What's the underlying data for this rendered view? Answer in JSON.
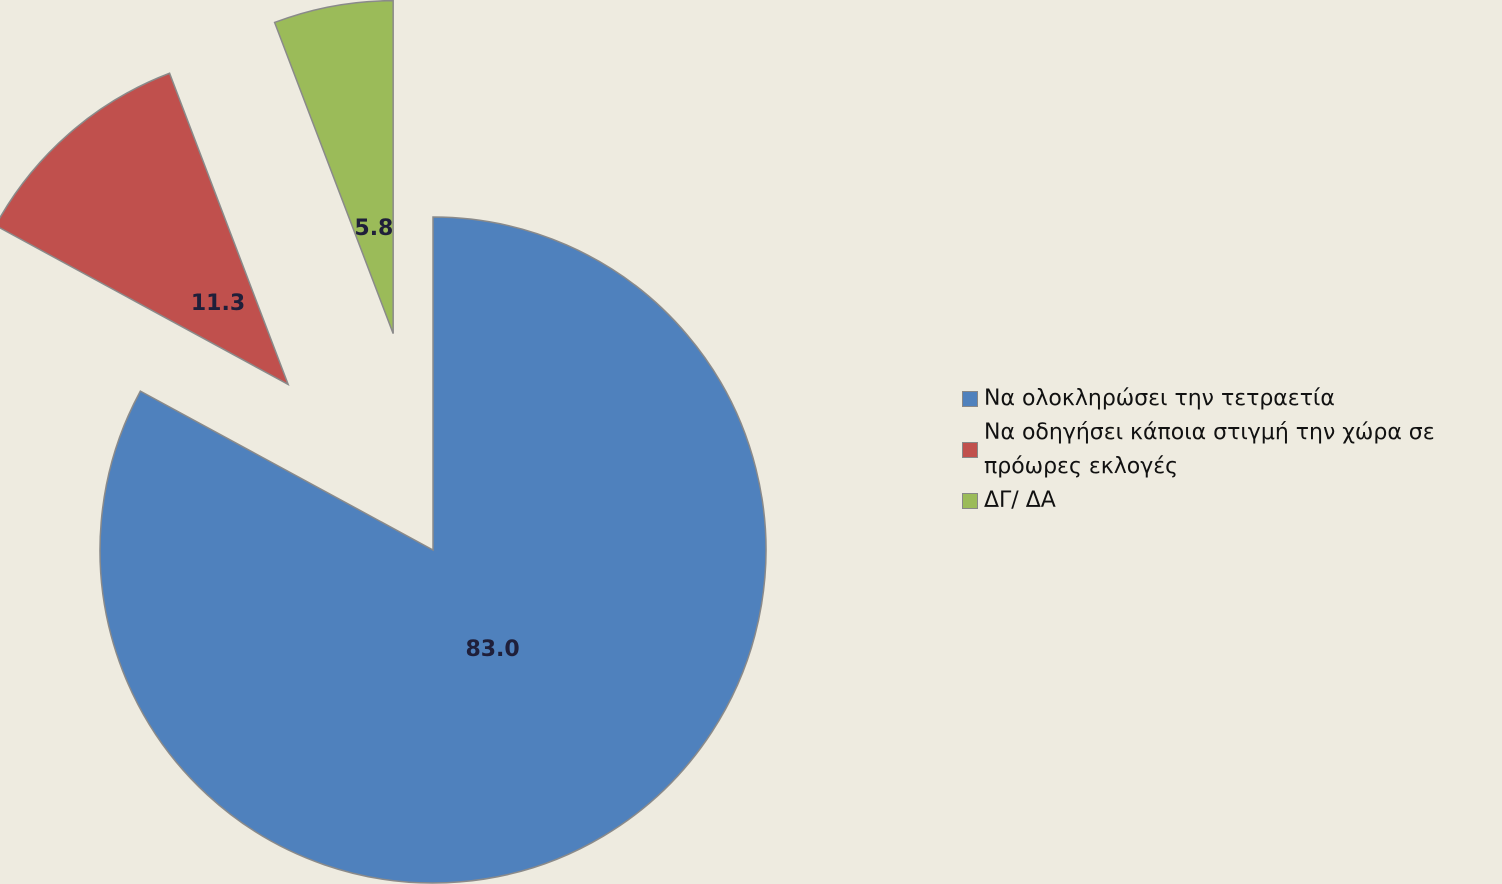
{
  "chart_data": {
    "type": "pie",
    "categories": [
      "Να ολοκληρώσει την τετραετία",
      "Να οδηγήσει κάποια στιγμή την χώρα σε πρόωρες εκλογές",
      "ΔΓ/ ΔΑ"
    ],
    "values": [
      83.0,
      11.3,
      5.8
    ],
    "value_labels": [
      "83.0",
      "11.3",
      "5.8"
    ],
    "colors": [
      "#4f81bd",
      "#c0504d",
      "#9bbb59"
    ],
    "exploded": [
      false,
      true,
      true
    ],
    "legend": "right"
  }
}
